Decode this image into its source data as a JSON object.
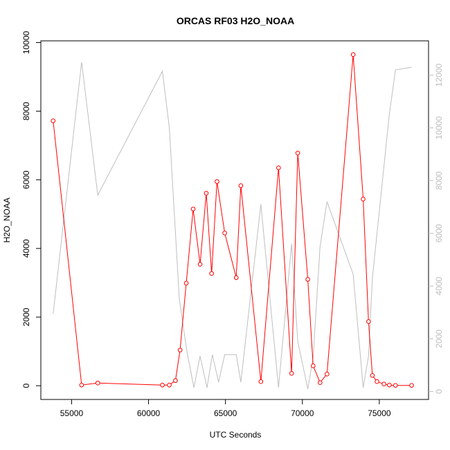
{
  "chart_data": {
    "type": "line",
    "title": "ORCAS RF03 H2O_NOAA",
    "xlabel": "UTC Seconds",
    "ylabel": "H2O_NOAA",
    "xlim": [
      53000,
      78200
    ],
    "ylim": [
      -400,
      10050
    ],
    "y2lim": [
      -300,
      13300
    ],
    "x_ticks": [
      55000,
      60000,
      65000,
      70000,
      75000
    ],
    "y_ticks": [
      0,
      2000,
      4000,
      6000,
      8000,
      10000
    ],
    "y2_ticks": [
      0,
      2000,
      4000,
      6000,
      8000,
      10000,
      12000
    ],
    "colors": {
      "primary": "#ff0000",
      "secondary": "#bebebe",
      "axis": "#000000"
    },
    "series": [
      {
        "axis": "left",
        "style": "line+points",
        "x": [
          53800,
          55650,
          56700,
          60900,
          61350,
          61750,
          62050,
          62450,
          62900,
          63350,
          63750,
          64100,
          64450,
          64950,
          65700,
          66000,
          67300,
          68450,
          69300,
          69700,
          70350,
          70700,
          71150,
          71600,
          73300,
          73950,
          74300,
          74550,
          74850,
          75300,
          75650,
          76050,
          77100
        ],
        "y": [
          7720,
          20,
          80,
          20,
          20,
          150,
          1040,
          2990,
          5150,
          3540,
          5610,
          3270,
          5950,
          4450,
          3150,
          5830,
          120,
          6350,
          360,
          6780,
          3100,
          580,
          90,
          340,
          9650,
          5440,
          1870,
          300,
          120,
          50,
          20,
          10,
          10
        ]
      },
      {
        "axis": "right",
        "style": "line",
        "x": [
          53800,
          55650,
          56700,
          60900,
          61350,
          62000,
          62500,
          62950,
          63350,
          63800,
          64150,
          64550,
          64950,
          65700,
          66000,
          67300,
          68450,
          69300,
          69700,
          70350,
          70700,
          71150,
          71600,
          73300,
          73950,
          74300,
          74550,
          75650,
          76050,
          77100
        ],
        "y": [
          2950,
          12500,
          7450,
          12150,
          10000,
          3500,
          1500,
          150,
          1350,
          150,
          1400,
          350,
          1400,
          1400,
          350,
          7100,
          150,
          5600,
          1900,
          100,
          1300,
          5500,
          7200,
          4450,
          150,
          1350,
          4300,
          10500,
          12200,
          12300
        ]
      }
    ]
  }
}
